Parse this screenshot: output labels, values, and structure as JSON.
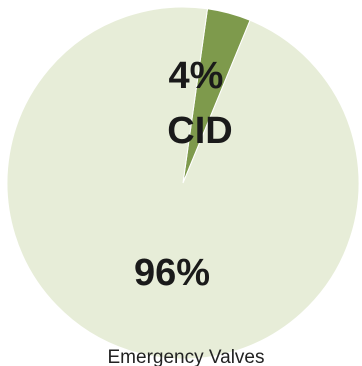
{
  "chart_data": {
    "type": "pie",
    "categories": [
      "CID",
      "Emergency Valves"
    ],
    "values": [
      4,
      96
    ],
    "labels": [
      "4%",
      "96%"
    ],
    "colors": [
      "#7e9a4c",
      "#e7edd8"
    ],
    "start_angle_deg": 8,
    "category_label": "CID",
    "caption": "Emergency Valves"
  }
}
